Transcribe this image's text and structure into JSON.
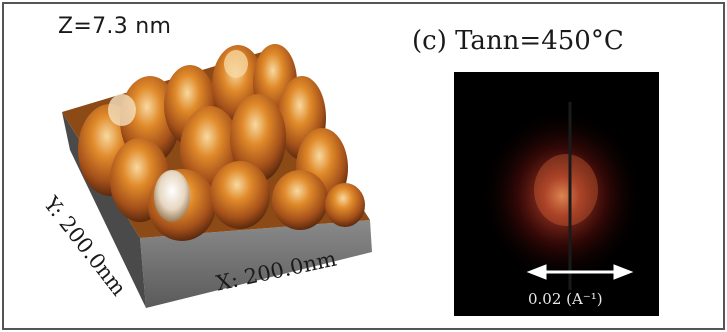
{
  "afm": {
    "z_label": "Z=7.3 nm",
    "x_axis_label": "X: 200.0nm",
    "y_axis_label": "Y: 200.0nm"
  },
  "fft": {
    "title": "(c) Tann=450°C",
    "scale_label": "0.02 (A⁻¹)"
  },
  "colors": {
    "frame": "#555555",
    "fft_background": "#000000",
    "surface_base": "#6b6b6b",
    "surface_peak": "#d9791c",
    "surface_highlight": "#f7e6c4",
    "arrow": "#ffffff"
  }
}
